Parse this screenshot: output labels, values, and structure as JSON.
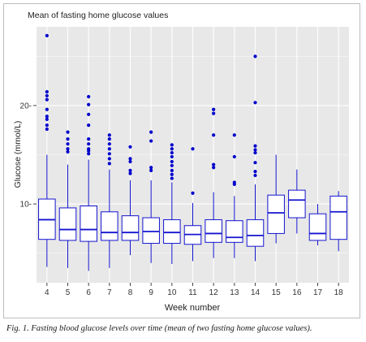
{
  "title": "Mean of fasting home glucose values",
  "caption": "Fig. 1. Fasting blood glucose levels over time (mean of two fasting home glucose values).",
  "colors": {
    "panel": "#e8e8e8",
    "grid": "#ffffff",
    "box": "#1515d0",
    "outlier": "#0000cc",
    "frame": "#bdbdbd"
  },
  "chart_data": {
    "type": "boxplot",
    "title": "Mean of fasting home glucose values",
    "xlabel": "Week number",
    "ylabel": "Glucose (mmol/L)",
    "ylim": [
      2,
      28
    ],
    "yticks": [
      10,
      20
    ],
    "grid": true,
    "legend": "none",
    "categories": [
      "4",
      "5",
      "6",
      "7",
      "8",
      "9",
      "10",
      "11",
      "12",
      "13",
      "14",
      "15",
      "16",
      "17",
      "18"
    ],
    "boxes": [
      {
        "week": "4",
        "whisker_low": 3.6,
        "q1": 6.4,
        "median": 8.4,
        "q3": 10.5,
        "whisker_high": 15.0,
        "outliers": [
          17.6,
          18.0,
          18.6,
          18.9,
          19.6,
          20.6,
          21.0,
          21.4,
          27.1
        ]
      },
      {
        "week": "5",
        "whisker_low": 3.5,
        "q1": 6.3,
        "median": 7.4,
        "q3": 9.6,
        "whisker_high": 14.0,
        "outliers": [
          15.3,
          15.6,
          16.1,
          16.6,
          17.3
        ]
      },
      {
        "week": "6",
        "whisker_low": 3.2,
        "q1": 6.2,
        "median": 7.4,
        "q3": 9.8,
        "whisker_high": 14.5,
        "outliers": [
          15.1,
          15.4,
          15.6,
          16.1,
          16.6,
          18.0,
          19.1,
          20.1,
          20.9
        ]
      },
      {
        "week": "7",
        "whisker_low": 3.5,
        "q1": 6.3,
        "median": 7.1,
        "q3": 9.2,
        "whisker_high": 13.5,
        "outliers": [
          14.1,
          14.6,
          15.1,
          15.6,
          16.1,
          16.6,
          17.0
        ]
      },
      {
        "week": "8",
        "whisker_low": 4.8,
        "q1": 6.3,
        "median": 7.1,
        "q3": 8.8,
        "whisker_high": 12.4,
        "outliers": [
          13.1,
          13.4,
          14.3,
          14.6,
          15.8
        ]
      },
      {
        "week": "9",
        "whisker_low": 4.0,
        "q1": 6.0,
        "median": 7.2,
        "q3": 8.6,
        "whisker_high": 12.4,
        "outliers": [
          13.4,
          13.7,
          16.4,
          17.3
        ]
      },
      {
        "week": "10",
        "whisker_low": 3.9,
        "q1": 6.0,
        "median": 7.1,
        "q3": 8.4,
        "whisker_high": 12.2,
        "outliers": [
          12.6,
          13.0,
          13.4,
          13.9,
          14.3,
          14.8,
          15.2,
          15.6,
          16.0
        ]
      },
      {
        "week": "11",
        "whisker_low": 4.2,
        "q1": 5.9,
        "median": 6.9,
        "q3": 7.8,
        "whisker_high": 10.1,
        "outliers": [
          11.1,
          15.6
        ]
      },
      {
        "week": "12",
        "whisker_low": 4.5,
        "q1": 6.1,
        "median": 7.0,
        "q3": 8.4,
        "whisker_high": 11.2,
        "outliers": [
          13.7,
          14.0,
          17.0,
          19.2,
          19.6
        ]
      },
      {
        "week": "13",
        "whisker_low": 4.5,
        "q1": 6.1,
        "median": 6.6,
        "q3": 8.3,
        "whisker_high": 10.8,
        "outliers": [
          12.0,
          12.2,
          14.8,
          17.0
        ]
      },
      {
        "week": "14",
        "whisker_low": 4.2,
        "q1": 5.7,
        "median": 6.8,
        "q3": 8.4,
        "whisker_high": 12.0,
        "outliers": [
          12.9,
          13.3,
          14.2,
          15.2,
          15.5,
          15.9,
          20.3,
          25.0
        ]
      },
      {
        "week": "15",
        "whisker_low": 6.0,
        "q1": 7.0,
        "median": 9.1,
        "q3": 10.9,
        "whisker_high": 15.0,
        "outliers": []
      },
      {
        "week": "16",
        "whisker_low": 7.0,
        "q1": 8.6,
        "median": 10.4,
        "q3": 11.4,
        "whisker_high": 13.5,
        "outliers": []
      },
      {
        "week": "17",
        "whisker_low": 5.8,
        "q1": 6.3,
        "median": 7.0,
        "q3": 9.0,
        "whisker_high": 10.0,
        "outliers": []
      },
      {
        "week": "18",
        "whisker_low": 5.2,
        "q1": 6.4,
        "median": 9.2,
        "q3": 10.8,
        "whisker_high": 11.3,
        "outliers": []
      }
    ]
  }
}
